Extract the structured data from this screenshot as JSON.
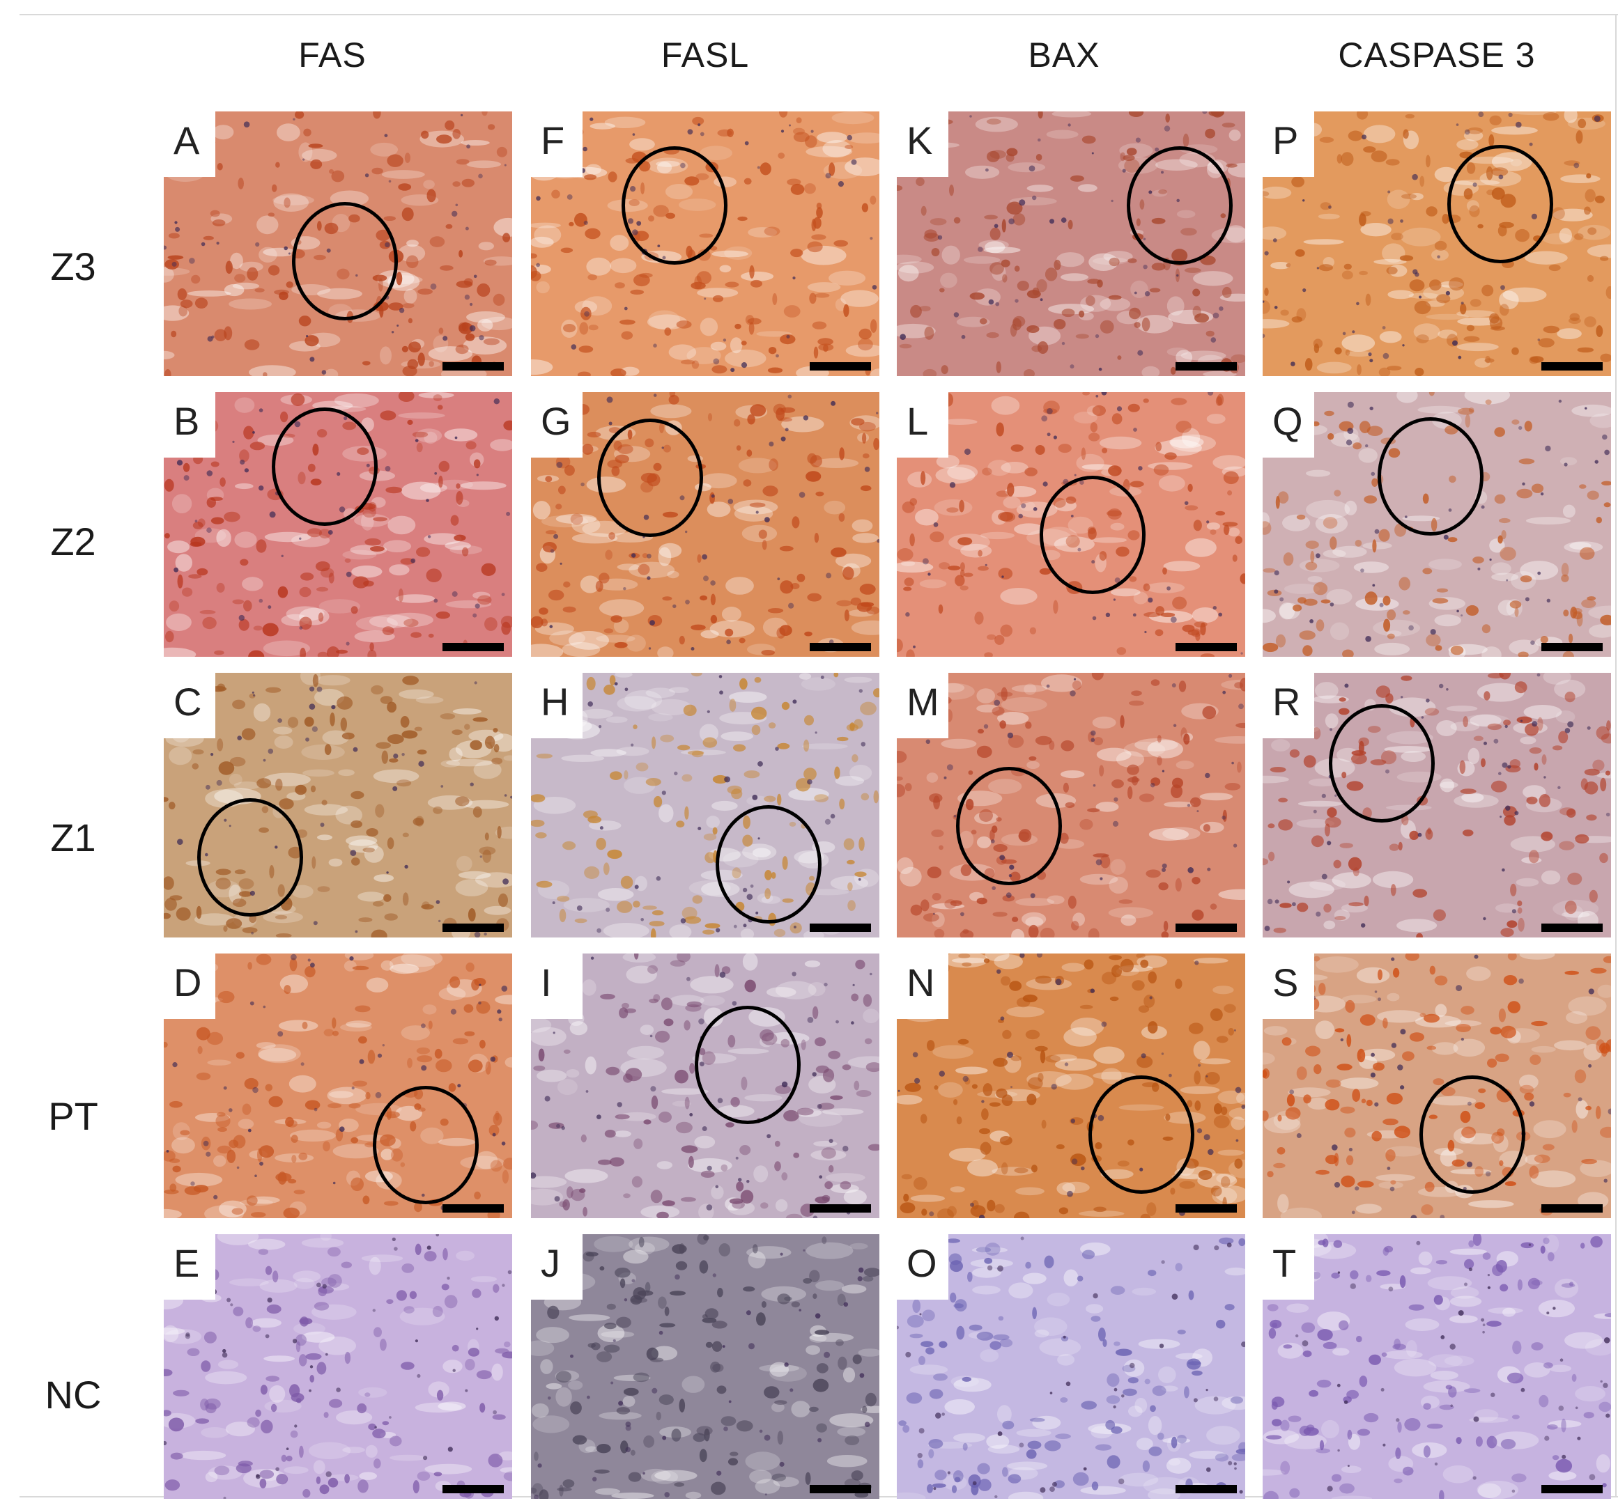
{
  "columns": [
    {
      "label": "FAS"
    },
    {
      "label": "FASL"
    },
    {
      "label": "BAX"
    },
    {
      "label": "CASPASE 3"
    }
  ],
  "rows": [
    {
      "label": "Z3"
    },
    {
      "label": "Z2"
    },
    {
      "label": "Z1"
    },
    {
      "label": "PT"
    },
    {
      "label": "NC"
    }
  ],
  "panels": [
    [
      "A",
      "F",
      "K",
      "P"
    ],
    [
      "B",
      "G",
      "L",
      "Q"
    ],
    [
      "C",
      "H",
      "M",
      "R"
    ],
    [
      "D",
      "I",
      "N",
      "S"
    ],
    [
      "E",
      "J",
      "O",
      "T"
    ]
  ],
  "stain_colors": {
    "Z3": [
      "#d98a6e",
      "#e79a6a",
      "#c98a86",
      "#e39a5e"
    ],
    "Z2": [
      "#d97f7f",
      "#dc8e5c",
      "#e49078",
      "#cfb0b4"
    ],
    "Z1": [
      "#c9a27a",
      "#c7b9c9",
      "#d88a72",
      "#c8a6ae"
    ],
    "PT": [
      "#de9068",
      "#c2b0c4",
      "#d98a4e",
      "#d8a384"
    ],
    "NC": [
      "#c8b2de",
      "#8f879a",
      "#c4b8e2",
      "#c6b3e0"
    ]
  },
  "blob_colors": {
    "Z3": [
      "#b8421c",
      "#c4501e",
      "#a8472e",
      "#c05c1a"
    ],
    "Z2": [
      "#b8361e",
      "#c0481a",
      "#c14a22",
      "#c25a22"
    ],
    "Z1": [
      "#a05a26",
      "#c7852e",
      "#b64428",
      "#b2402a"
    ],
    "PT": [
      "#c75824",
      "#7a4a70",
      "#b85412",
      "#cf4e14"
    ],
    "NC": [
      "#7e5aa8",
      "#4a4458",
      "#6a62b2",
      "#7a5ab0"
    ]
  }
}
